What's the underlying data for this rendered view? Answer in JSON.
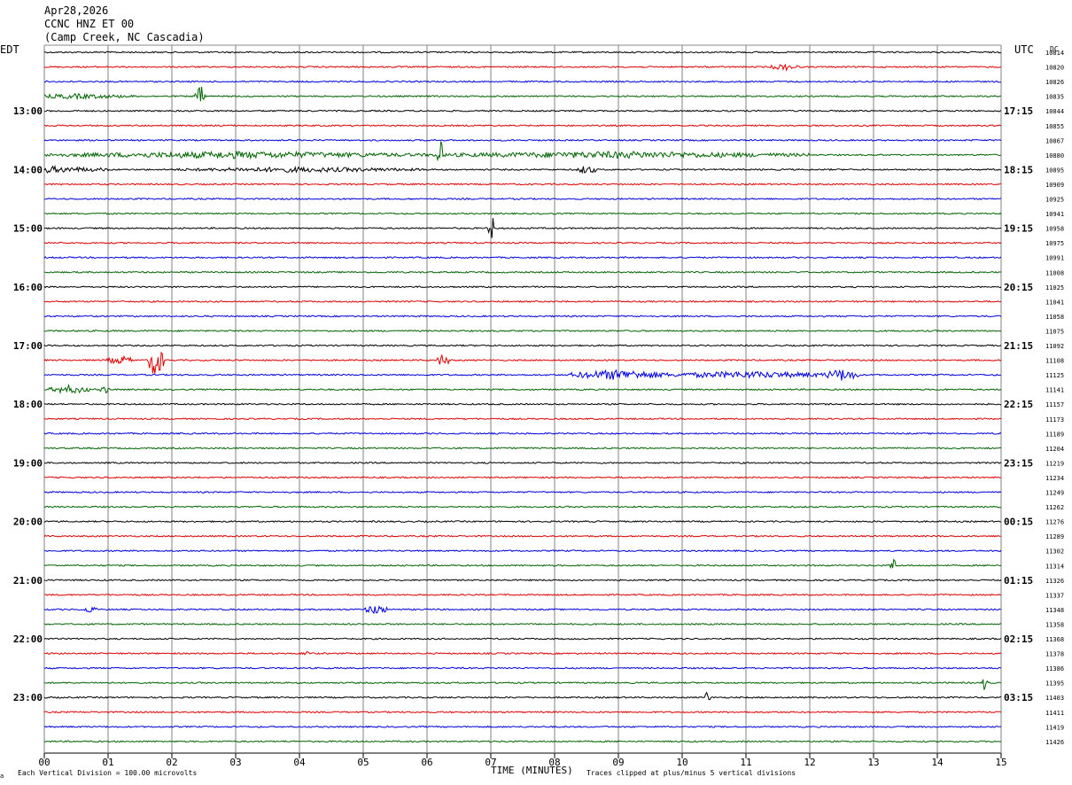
{
  "header": {
    "date": "Apr28,2026",
    "station": "CCNC HNZ ET 00",
    "location": "(Camp Creek, NC Cascadia)"
  },
  "left_tz": "EDT",
  "right_tz": "UTC",
  "dc_label": "DC",
  "footer": {
    "scale": "Each Vertical Division =  100.00 microvolts",
    "xlabel": "TIME (MINUTES)",
    "clip": "Traces clipped at plus/minus 5 vertical divisions",
    "corner": "a"
  },
  "chart_data": {
    "type": "line",
    "title": "CCNC HNZ ET 00",
    "xlabel": "TIME (MINUTES)",
    "ylabel": "",
    "xlim": [
      0,
      15
    ],
    "x_ticks": [
      "00",
      "01",
      "02",
      "03",
      "04",
      "05",
      "06",
      "07",
      "08",
      "09",
      "10",
      "11",
      "12",
      "13",
      "14",
      "15"
    ],
    "left_ticks": [
      "13:00",
      "14:00",
      "15:00",
      "16:00",
      "17:00",
      "18:00",
      "19:00",
      "20:00",
      "21:00",
      "22:00",
      "23:00"
    ],
    "right_ticks": [
      "17:15",
      "18:15",
      "19:15",
      "20:15",
      "21:15",
      "22:15",
      "23:15",
      "00:15",
      "01:15",
      "02:15",
      "03:15"
    ],
    "trace_colors": [
      "#000000",
      "#e00000",
      "#0000e0",
      "#006400"
    ],
    "dc_offsets": [
      "10814",
      "10820",
      "10826",
      "10835",
      "10844",
      "10855",
      "10867",
      "10880",
      "10895",
      "10909",
      "10925",
      "10941",
      "10958",
      "10975",
      "10991",
      "11008",
      "11025",
      "11041",
      "11058",
      "11075",
      "11092",
      "11108",
      "11125",
      "11141",
      "11157",
      "11173",
      "11189",
      "11204",
      "11219",
      "11234",
      "11249",
      "11262",
      "11276",
      "11289",
      "11302",
      "11314",
      "11326",
      "11337",
      "11348",
      "11358",
      "11368",
      "11378",
      "11386",
      "11395",
      "11403",
      "11411",
      "11419",
      "11426"
    ],
    "events": [
      {
        "row": 1,
        "minute": 11.6,
        "amp": 4,
        "width": 0.4
      },
      {
        "row": 3,
        "minute": 2.45,
        "amp": 12,
        "width": 0.15
      },
      {
        "row": 3,
        "minute": 0.5,
        "amp": 3,
        "width": 1.8
      },
      {
        "row": 7,
        "minute": 6.2,
        "amp": 16,
        "width": 0.05
      },
      {
        "row": 7,
        "minute": 3.0,
        "amp": 4,
        "width": 6.0
      },
      {
        "row": 7,
        "minute": 9.0,
        "amp": 4,
        "width": 6.0
      },
      {
        "row": 8,
        "minute": 0.0,
        "amp": 4,
        "width": 2.0
      },
      {
        "row": 8,
        "minute": 4.0,
        "amp": 3,
        "width": 4.0
      },
      {
        "row": 8,
        "minute": 8.5,
        "amp": 5,
        "width": 0.3
      },
      {
        "row": 12,
        "minute": 7.0,
        "amp": 12,
        "width": 0.03
      },
      {
        "row": 21,
        "minute": 1.75,
        "amp": 20,
        "width": 0.2
      },
      {
        "row": 21,
        "minute": 1.2,
        "amp": 5,
        "width": 0.4
      },
      {
        "row": 21,
        "minute": 6.25,
        "amp": 8,
        "width": 0.15
      },
      {
        "row": 22,
        "minute": 9.0,
        "amp": 6,
        "width": 1.5
      },
      {
        "row": 22,
        "minute": 12.5,
        "amp": 7,
        "width": 0.5
      },
      {
        "row": 22,
        "minute": 11.0,
        "amp": 4,
        "width": 3.0
      },
      {
        "row": 23,
        "minute": 0.4,
        "amp": 5,
        "width": 0.6
      },
      {
        "row": 23,
        "minute": 0.95,
        "amp": 5,
        "width": 0.1
      },
      {
        "row": 35,
        "minute": 13.3,
        "amp": 8,
        "width": 0.05
      },
      {
        "row": 38,
        "minute": 5.2,
        "amp": 6,
        "width": 0.3
      },
      {
        "row": 38,
        "minute": 0.7,
        "amp": 4,
        "width": 0.2
      },
      {
        "row": 41,
        "minute": 4.1,
        "amp": 4,
        "width": 0.1
      },
      {
        "row": 43,
        "minute": 14.75,
        "amp": 8,
        "width": 0.05
      },
      {
        "row": 44,
        "minute": 10.4,
        "amp": 6,
        "width": 0.05
      }
    ]
  }
}
